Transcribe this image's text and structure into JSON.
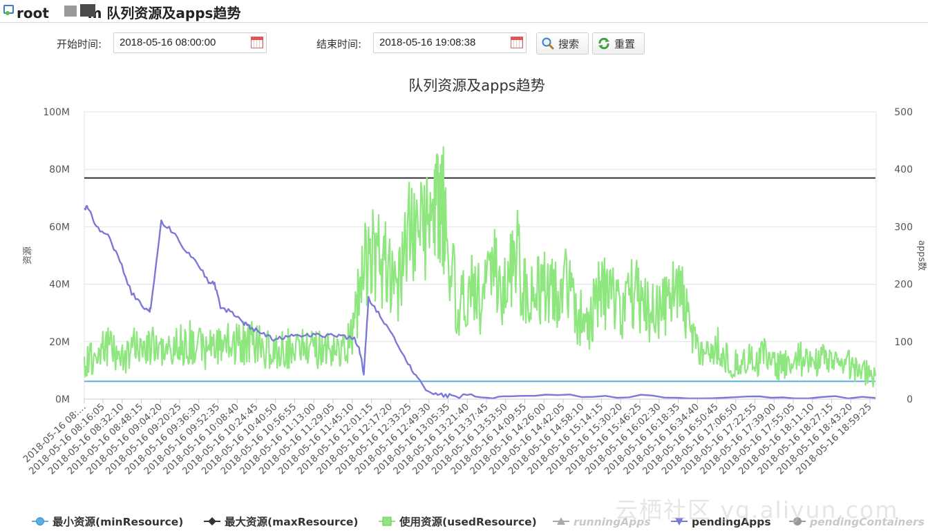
{
  "header": {
    "title_prefix": "root",
    "title_suffix": "m 队列资源及apps趋势"
  },
  "filters": {
    "start_label": "开始时间:",
    "start_value": "2018-05-16 08:00:00",
    "end_label": "结束时间:",
    "end_value": "2018-05-16 19:08:38",
    "search_label": "搜索",
    "reset_label": "重置"
  },
  "watermark": "云栖社区 yq.aliyun.com",
  "colors": {
    "minResource": "#5aaee0",
    "maxResource": "#333333",
    "usedResource": "#8ee67e",
    "runningApps": "#aaaaaa",
    "pendingApps": "#7b78d8",
    "pendingContainers": "#999999",
    "grid": "#e4e0ea"
  },
  "chart_data": {
    "type": "line",
    "title": "队列资源及apps趋势",
    "y_left_label": "资源",
    "y_right_label": "apps数",
    "y_left_ticks": [
      "0M",
      "20M",
      "40M",
      "60M",
      "80M",
      "100M"
    ],
    "y_right_ticks": [
      "0",
      "100",
      "200",
      "300",
      "400",
      "500"
    ],
    "y_left_range": [
      0,
      100
    ],
    "y_right_range": [
      0,
      500
    ],
    "x_range": [
      "08:00:00",
      "19:08:38"
    ],
    "x_ticks": [
      "2018-05-16 08:…",
      "2018-05-16 08:16:05",
      "2018-05-16 08:32:10",
      "2018-05-16 08:48:15",
      "2018-05-16 09:04:20",
      "2018-05-16 09:20:25",
      "2018-05-16 09:36:30",
      "2018-05-16 09:52:35",
      "2018-05-16 10:08:40",
      "2018-05-16 10:24:45",
      "2018-05-16 10:40:50",
      "2018-05-16 10:56:55",
      "2018-05-16 11:13:00",
      "2018-05-16 11:29:05",
      "2018-05-16 11:45:10",
      "2018-05-16 12:01:15",
      "2018-05-16 12:17:20",
      "2018-05-16 12:33:25",
      "2018-05-16 12:49:30",
      "2018-05-16 13:05:35",
      "2018-05-16 13:21:40",
      "2018-05-16 13:37:45",
      "2018-05-16 13:53:50",
      "2018-05-16 14:09:55",
      "2018-05-16 14:26:00",
      "2018-05-16 14:42:05",
      "2018-05-16 14:58:10",
      "2018-05-16 15:14:15",
      "2018-05-16 15:30:20",
      "2018-05-16 15:46:25",
      "2018-05-16 16:02:30",
      "2018-05-16 16:18:35",
      "2018-05-16 16:34:40",
      "2018-05-16 16:50:45",
      "2018-05-16 17:06:50",
      "2018-05-16 17:22:55",
      "2018-05-16 17:39:00",
      "2018-05-16 17:55:05",
      "2018-05-16 18:11:10",
      "2018-05-16 18:27:15",
      "2018-05-16 18:43:20",
      "2018-05-16 18:59:25"
    ],
    "legend_position": "bottom",
    "grid": true,
    "series": [
      {
        "key": "minResource",
        "name": "最小资源(minResource)",
        "axis": "left",
        "marker": "circle",
        "x": [
          "08:00",
          "19:08"
        ],
        "y": [
          6.2,
          6.2
        ]
      },
      {
        "key": "maxResource",
        "name": "最大资源(maxResource)",
        "axis": "left",
        "marker": "diamond",
        "x": [
          "08:00",
          "19:08"
        ],
        "y": [
          77,
          77
        ]
      },
      {
        "key": "usedResource",
        "name": "使用资源(usedResource)",
        "axis": "left",
        "marker": "square",
        "x": [
          "08:00",
          "08:10",
          "08:20",
          "08:30",
          "08:40",
          "08:50",
          "09:00",
          "09:10",
          "09:20",
          "09:30",
          "09:40",
          "09:50",
          "10:00",
          "10:10",
          "10:20",
          "10:30",
          "10:40",
          "10:50",
          "11:00",
          "11:10",
          "11:20",
          "11:30",
          "11:40",
          "11:48",
          "11:55",
          "12:05",
          "12:15",
          "12:25",
          "12:35",
          "12:45",
          "12:55",
          "13:00",
          "13:05",
          "13:15",
          "13:25",
          "13:35",
          "13:45",
          "13:55",
          "14:05",
          "14:15",
          "14:25",
          "14:35",
          "14:45",
          "14:55",
          "15:05",
          "15:15",
          "15:25",
          "15:35",
          "15:45",
          "15:55",
          "16:05",
          "16:15",
          "16:25",
          "16:35",
          "16:45",
          "16:55",
          "17:05",
          "17:15",
          "17:25",
          "17:35",
          "17:45",
          "17:55",
          "18:05",
          "18:15",
          "18:25",
          "18:35",
          "18:45",
          "18:55",
          "19:08"
        ],
        "y": [
          12,
          16,
          19,
          14,
          17,
          20,
          18,
          16,
          19,
          20,
          17,
          18,
          19,
          19,
          20,
          18,
          16,
          17,
          19,
          18,
          17,
          16,
          18,
          25,
          45,
          50,
          46,
          42,
          58,
          60,
          62,
          68,
          65,
          30,
          40,
          35,
          45,
          38,
          50,
          32,
          40,
          36,
          42,
          30,
          25,
          38,
          35,
          28,
          40,
          30,
          32,
          36,
          35,
          22,
          14,
          18,
          12,
          14,
          13,
          15,
          11,
          13,
          14,
          12,
          15,
          11,
          12,
          10,
          8
        ]
      },
      {
        "key": "runningApps",
        "name": "runningApps",
        "axis": "right",
        "marker": "triangle",
        "hidden": true
      },
      {
        "key": "pendingApps",
        "name": "pendingApps",
        "axis": "right",
        "marker": "triangle-down",
        "x": [
          "08:00",
          "08:03",
          "08:10",
          "08:20",
          "08:30",
          "08:40",
          "08:50",
          "08:55",
          "08:56",
          "09:05",
          "09:15",
          "09:25",
          "09:35",
          "09:45",
          "09:50",
          "09:55",
          "10:05",
          "10:15",
          "10:20",
          "10:30",
          "10:40",
          "10:50",
          "11:00",
          "11:10",
          "11:20",
          "11:30",
          "11:40",
          "11:48",
          "11:52",
          "11:56",
          "12:00",
          "12:10",
          "12:20",
          "12:30",
          "12:40",
          "12:50",
          "13:00",
          "13:10",
          "13:30",
          "14:00",
          "15:00",
          "16:00",
          "17:00",
          "18:00",
          "19:08"
        ],
        "y": [
          330,
          335,
          300,
          285,
          240,
          185,
          160,
          155,
          155,
          310,
          290,
          260,
          240,
          205,
          200,
          160,
          150,
          132,
          125,
          115,
          105,
          108,
          110,
          112,
          112,
          110,
          108,
          105,
          90,
          45,
          175,
          145,
          110,
          75,
          40,
          15,
          8,
          5,
          5,
          4,
          5,
          4,
          3,
          2,
          2
        ]
      },
      {
        "key": "pendingContainers",
        "name": "pendingContainers",
        "axis": "right",
        "marker": "circle",
        "hidden": true
      }
    ]
  }
}
